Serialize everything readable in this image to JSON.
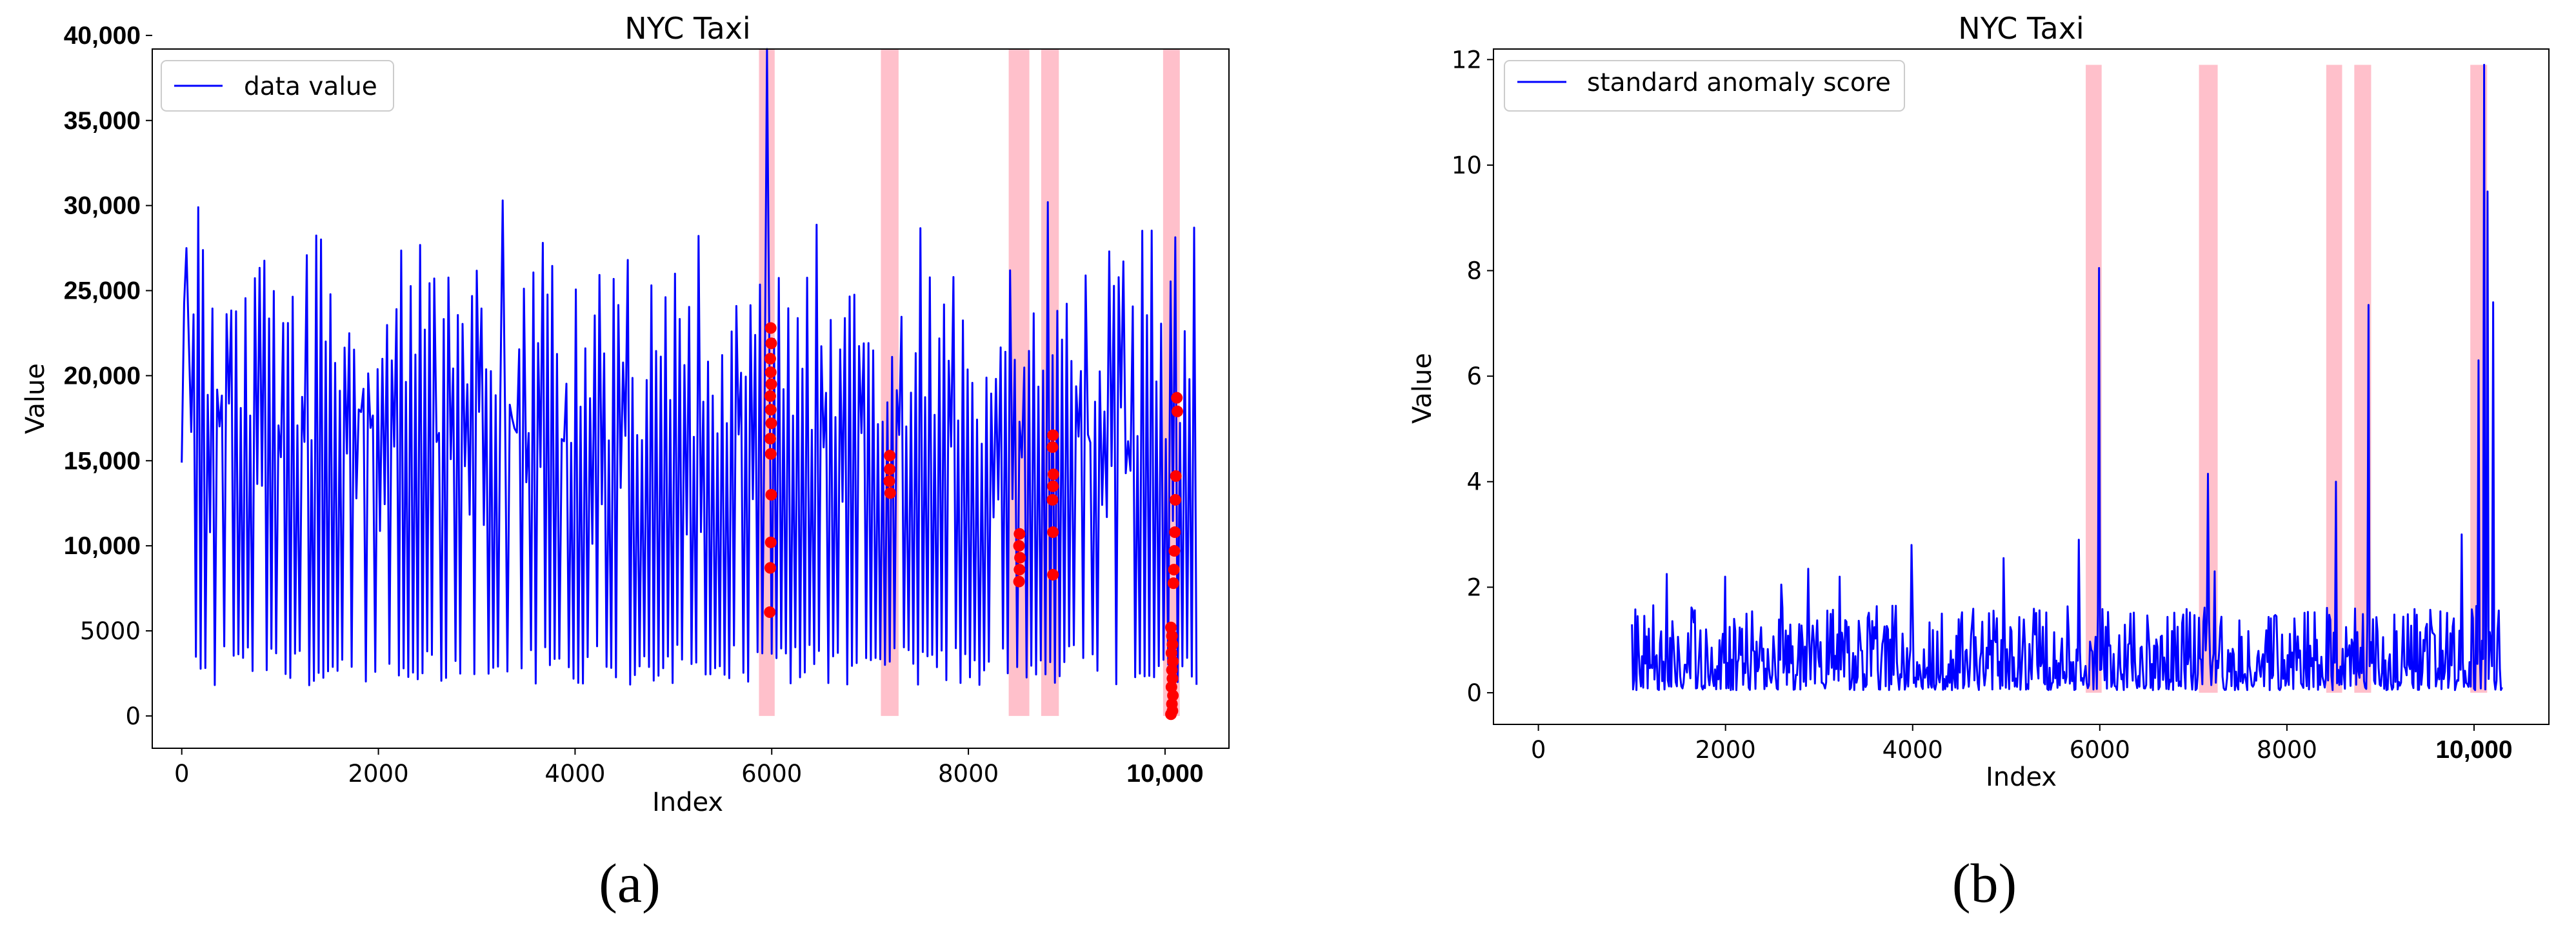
{
  "colors": {
    "line": "#0000ff",
    "anomaly_point": "#ff0000",
    "band": "#ffc0cb",
    "axes": "#000000"
  },
  "chart_data": [
    {
      "type": "line",
      "panel": "(a)",
      "title": "NYC Taxi",
      "xlabel": "Index",
      "ylabel": "Value",
      "xlim": [
        -300,
        10650
      ],
      "ylim": [
        -1900,
        39200
      ],
      "x_ticks": [
        {
          "value": 0,
          "label": "0",
          "bold": false
        },
        {
          "value": 2000,
          "label": "2000",
          "bold": false
        },
        {
          "value": 4000,
          "label": "4000",
          "bold": false
        },
        {
          "value": 6000,
          "label": "6000",
          "bold": false
        },
        {
          "value": 8000,
          "label": "8000",
          "bold": false
        },
        {
          "value": 10000,
          "label": "10,000",
          "bold": true
        }
      ],
      "y_ticks": [
        {
          "value": 0,
          "label": "0",
          "bold": false
        },
        {
          "value": 5000,
          "label": "5000",
          "bold": false
        },
        {
          "value": 10000,
          "label": "10,000",
          "bold": true
        },
        {
          "value": 15000,
          "label": "15,000",
          "bold": true
        },
        {
          "value": 20000,
          "label": "20,000",
          "bold": true
        },
        {
          "value": 25000,
          "label": "25,000",
          "bold": true
        },
        {
          "value": 30000,
          "label": "30,000",
          "bold": true
        },
        {
          "value": 35000,
          "label": "35,000",
          "bold": true
        },
        {
          "value": 40000,
          "label": "40,000",
          "bold": true
        }
      ],
      "legend": {
        "position": "top-left",
        "entries": [
          "data value"
        ]
      },
      "anomaly_windows": [
        [
          5870,
          6030
        ],
        [
          7110,
          7290
        ],
        [
          8410,
          8620
        ],
        [
          8740,
          8920
        ],
        [
          9980,
          10150
        ]
      ],
      "series": [
        {
          "name": "data value",
          "style": "oscillating",
          "x_start": 0,
          "x_end": 10320,
          "period": 48,
          "low_range": [
            1800,
            4200
          ],
          "high_range": [
            16000,
            29500
          ],
          "peaks": [
            {
              "x": 60,
              "value": 27500
            },
            {
              "x": 160,
              "value": 29900
            },
            {
              "x": 3260,
              "value": 30300
            },
            {
              "x": 5960,
              "value": 39200
            },
            {
              "x": 8820,
              "value": 30200
            },
            {
              "x": 10300,
              "value": 28700
            }
          ]
        }
      ],
      "anomaly_points": [
        {
          "x": 5990,
          "y": 22800
        },
        {
          "x": 5995,
          "y": 21900
        },
        {
          "x": 5985,
          "y": 21000
        },
        {
          "x": 5990,
          "y": 20200
        },
        {
          "x": 5995,
          "y": 19500
        },
        {
          "x": 5985,
          "y": 18800
        },
        {
          "x": 5990,
          "y": 18000
        },
        {
          "x": 5995,
          "y": 17200
        },
        {
          "x": 5985,
          "y": 16300
        },
        {
          "x": 5990,
          "y": 15400
        },
        {
          "x": 5995,
          "y": 13000
        },
        {
          "x": 5990,
          "y": 10200
        },
        {
          "x": 5985,
          "y": 8700
        },
        {
          "x": 5980,
          "y": 6100
        },
        {
          "x": 7200,
          "y": 15300
        },
        {
          "x": 7200,
          "y": 14500
        },
        {
          "x": 7195,
          "y": 13800
        },
        {
          "x": 7205,
          "y": 13100
        },
        {
          "x": 8520,
          "y": 10700
        },
        {
          "x": 8515,
          "y": 10000
        },
        {
          "x": 8525,
          "y": 9300
        },
        {
          "x": 8520,
          "y": 8600
        },
        {
          "x": 8515,
          "y": 7900
        },
        {
          "x": 8860,
          "y": 16500
        },
        {
          "x": 8855,
          "y": 15800
        },
        {
          "x": 8865,
          "y": 14200
        },
        {
          "x": 8860,
          "y": 13500
        },
        {
          "x": 8855,
          "y": 12700
        },
        {
          "x": 8860,
          "y": 10800
        },
        {
          "x": 8860,
          "y": 8300
        },
        {
          "x": 10120,
          "y": 18700
        },
        {
          "x": 10125,
          "y": 17900
        },
        {
          "x": 10110,
          "y": 14100
        },
        {
          "x": 10105,
          "y": 12700
        },
        {
          "x": 10100,
          "y": 10800
        },
        {
          "x": 10095,
          "y": 9700
        },
        {
          "x": 10090,
          "y": 8600
        },
        {
          "x": 10085,
          "y": 7800
        },
        {
          "x": 10060,
          "y": 5200
        },
        {
          "x": 10070,
          "y": 4700
        },
        {
          "x": 10075,
          "y": 4200
        },
        {
          "x": 10065,
          "y": 3700
        },
        {
          "x": 10080,
          "y": 3200
        },
        {
          "x": 10070,
          "y": 2700
        },
        {
          "x": 10075,
          "y": 2200
        },
        {
          "x": 10065,
          "y": 1700
        },
        {
          "x": 10080,
          "y": 1200
        },
        {
          "x": 10070,
          "y": 700
        },
        {
          "x": 10075,
          "y": 300
        },
        {
          "x": 10060,
          "y": 100
        }
      ]
    },
    {
      "type": "line",
      "panel": "(b)",
      "title": "NYC Taxi",
      "xlabel": "Index",
      "ylabel": "Value",
      "xlim": [
        -480,
        10800
      ],
      "ylim": [
        -0.6,
        12.2
      ],
      "x_ticks": [
        {
          "value": 0,
          "label": "0",
          "bold": false
        },
        {
          "value": 2000,
          "label": "2000",
          "bold": false
        },
        {
          "value": 4000,
          "label": "4000",
          "bold": false
        },
        {
          "value": 6000,
          "label": "6000",
          "bold": false
        },
        {
          "value": 8000,
          "label": "8000",
          "bold": false
        },
        {
          "value": 10000,
          "label": "10,000",
          "bold": true
        }
      ],
      "y_ticks": [
        {
          "value": 0,
          "label": "0",
          "bold": false
        },
        {
          "value": 2,
          "label": "2",
          "bold": false
        },
        {
          "value": 4,
          "label": "4",
          "bold": false
        },
        {
          "value": 6,
          "label": "6",
          "bold": false
        },
        {
          "value": 8,
          "label": "8",
          "bold": false
        },
        {
          "value": 10,
          "label": "10",
          "bold": false
        },
        {
          "value": 12,
          "label": "12",
          "bold": false
        }
      ],
      "legend": {
        "position": "top-left",
        "entries": [
          "standard anomaly score"
        ]
      },
      "anomaly_windows": [
        [
          5850,
          6020
        ],
        [
          7060,
          7260
        ],
        [
          8420,
          8590
        ],
        [
          8720,
          8900
        ],
        [
          9960,
          10140
        ]
      ],
      "series": [
        {
          "name": "standard anomaly score",
          "style": "noisy",
          "x_start": 1000,
          "x_end": 10300,
          "step": 12,
          "base_range": [
            0.05,
            1.2
          ],
          "peaks": [
            {
              "x": 1060,
              "value": 1.45
            },
            {
              "x": 1370,
              "value": 2.25
            },
            {
              "x": 2000,
              "value": 2.2
            },
            {
              "x": 2600,
              "value": 2.05
            },
            {
              "x": 2880,
              "value": 2.35
            },
            {
              "x": 3220,
              "value": 2.2
            },
            {
              "x": 3990,
              "value": 2.8
            },
            {
              "x": 4970,
              "value": 2.55
            },
            {
              "x": 5780,
              "value": 2.9
            },
            {
              "x": 5990,
              "value": 8.05
            },
            {
              "x": 7160,
              "value": 4.15
            },
            {
              "x": 7230,
              "value": 2.3
            },
            {
              "x": 8530,
              "value": 4.0
            },
            {
              "x": 8870,
              "value": 7.35
            },
            {
              "x": 9870,
              "value": 3.0
            },
            {
              "x": 10050,
              "value": 6.3
            },
            {
              "x": 10110,
              "value": 11.9
            },
            {
              "x": 10150,
              "value": 9.5
            },
            {
              "x": 10200,
              "value": 7.4
            }
          ]
        }
      ]
    }
  ],
  "panel_labels": [
    "(a)",
    "(b)"
  ]
}
